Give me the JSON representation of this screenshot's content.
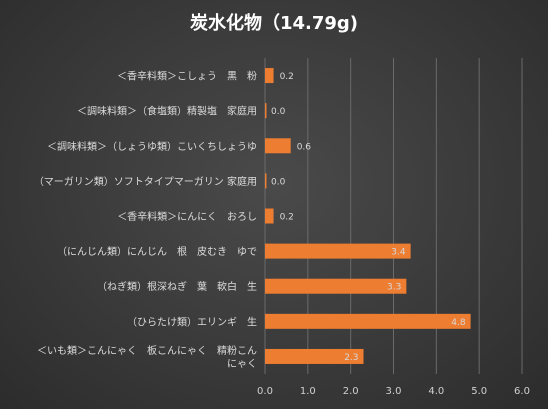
{
  "chart_data": {
    "type": "bar",
    "orientation": "horizontal",
    "title": "炭水化物（14.79g)",
    "categories": [
      [
        "＜香辛料類＞こしょう　黒　粉"
      ],
      [
        "＜調味料類＞（食塩類）精製塩　家庭用"
      ],
      [
        "＜調味料類＞（しょうゆ類）こいくちしょうゆ"
      ],
      [
        "（マーガリン類）ソフトタイプマーガリン 家庭用"
      ],
      [
        "＜香辛料類＞にんにく　おろし"
      ],
      [
        "（にんじん類）にんじん　根　皮むき　ゆで"
      ],
      [
        "（ねぎ類）根深ねぎ　葉　軟白　生"
      ],
      [
        "（ひらたけ類）エリンギ　生"
      ],
      [
        "＜いも類＞こんにゃく　板こんにゃく　精粉こん",
        "にゃく"
      ]
    ],
    "values": [
      0.2,
      0.0,
      0.6,
      0.0,
      0.2,
      3.4,
      3.3,
      4.8,
      2.3
    ],
    "data_labels": [
      "0.2",
      "0.0",
      "0.6",
      "0.0",
      "0.2",
      "3.4",
      "3.3",
      "4.8",
      "2.3"
    ],
    "x_ticks": [
      "0.0",
      "1.0",
      "2.0",
      "3.0",
      "4.0",
      "5.0",
      "6.0"
    ],
    "xlim": [
      0,
      6
    ],
    "grid": true,
    "bar_color": "#ed7d31",
    "text_color": "#dcdcdc"
  }
}
